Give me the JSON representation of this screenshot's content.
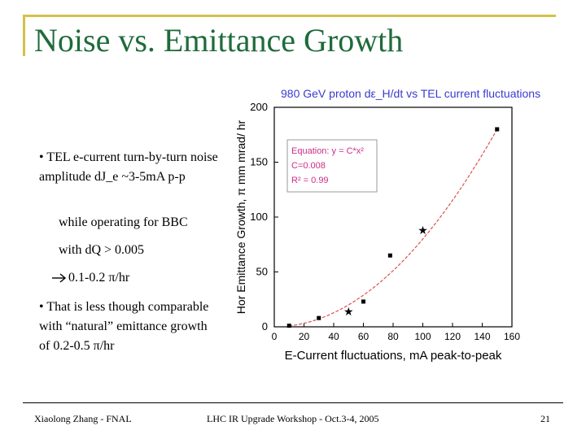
{
  "slide": {
    "title": "Noise vs. Emittance Growth",
    "bullets": {
      "b1": "• TEL e-current turn-by-turn noise amplitude dJ_e ~3-5mA p-p",
      "b2": "while operating for BBC",
      "b3": "with dQ > 0.005",
      "b4": " 0.1-0.2  π/hr",
      "b5": "• That is less though comparable with “natural” emittance growth of 0.2-0.5 π/hr"
    },
    "footer": {
      "left": "Xiaolong Zhang - FNAL",
      "center": "LHC IR Upgrade Workshop - Oct.3-4, 2005",
      "right": "21"
    }
  },
  "icons": {
    "arrow": "right-arrow-icon"
  },
  "colors": {
    "title": "#1f6b3a",
    "frame": "#d4c24a",
    "fit_line": "#d9534f",
    "equation_text": "#cc2d8a",
    "chart_title": "#3a3ad0"
  },
  "chart_data": {
    "type": "scatter",
    "title": "980 GeV proton dε_H/dt  vs TEL current fluctuations",
    "xlabel": "E-Current fluctuations,  mA peak-to-peak",
    "ylabel": "Hor Emittance Growth, π mm mrad/ hr",
    "xlim": [
      0,
      160
    ],
    "ylim": [
      0,
      200
    ],
    "x_ticks": [
      "0",
      "20",
      "40",
      "60",
      "80",
      "100",
      "120",
      "140",
      "160"
    ],
    "y_ticks": [
      "0",
      "50",
      "100",
      "150",
      "200"
    ],
    "series": [
      {
        "marker": "square",
        "x": [
          10,
          30,
          60,
          78,
          150
        ],
        "y": [
          1,
          8,
          23,
          65,
          180
        ]
      },
      {
        "marker": "star",
        "x": [
          50,
          100
        ],
        "y": [
          14,
          88
        ]
      }
    ],
    "fit": {
      "coefficient": 0.008,
      "exponent": 2,
      "x_start": 10,
      "x_end": 150
    },
    "legend": {
      "line1": "Equation: y = C*x²",
      "line2": "C=0.008",
      "line3": "R²      = 0.99"
    }
  }
}
